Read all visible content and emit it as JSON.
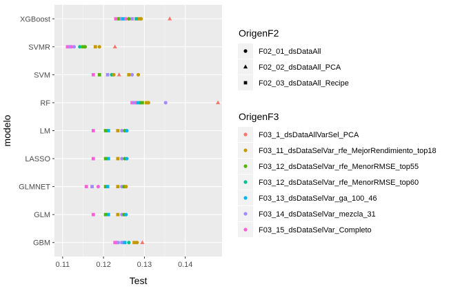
{
  "chart_data": {
    "type": "scatter",
    "xlabel": "Test",
    "ylabel": "modelo",
    "xlim": [
      0.108,
      0.149
    ],
    "x_ticks": [
      0.11,
      0.12,
      0.13,
      0.14
    ],
    "x_tick_labels": [
      "0.11",
      "0.12",
      "0.13",
      "0.14"
    ],
    "categories": [
      "GBM",
      "GLM",
      "GLMNET",
      "LASSO",
      "LM",
      "RF",
      "SVM",
      "SVMR",
      "XGBoost"
    ],
    "grid": true,
    "legend_placement": "right",
    "legend_shape": {
      "title": "OrigenF2",
      "entries": [
        {
          "label": "F02_01_dsDataAll",
          "shape": "circle"
        },
        {
          "label": "F02_02_dsDataAll_PCA",
          "shape": "triangle"
        },
        {
          "label": "F02_03_dsDataAll_Recipe",
          "shape": "square"
        }
      ]
    },
    "legend_color": {
      "title": "OrigenF3",
      "entries": [
        {
          "label": "F03_1_dsDataAllVarSel_PCA",
          "color": "#F8766D"
        },
        {
          "label": "F03_11_dsDataSelVar_rfe_MejorRendimiento_top18",
          "color": "#C49A00"
        },
        {
          "label": "F03_12_dsDataSelVar_rfe_MenorRMSE_top55",
          "color": "#53B400"
        },
        {
          "label": "F03_12_dsDataSelVar_rfe_MenorRMSE_top60",
          "color": "#00C094"
        },
        {
          "label": "F03_13_dsDataSelVar_ga_100_46",
          "color": "#00B6EB"
        },
        {
          "label": "F03_14_dsDataSelVar_mezcla_31",
          "color": "#A58AFF"
        },
        {
          "label": "F03_15_dsDataSelVar_Completo",
          "color": "#FB61D7"
        }
      ]
    },
    "points": [
      {
        "model": "GBM",
        "x": 0.1228,
        "shape": "square",
        "color": 6
      },
      {
        "model": "GBM",
        "x": 0.1232,
        "shape": "circle",
        "color": 6
      },
      {
        "model": "GBM",
        "x": 0.1236,
        "shape": "circle",
        "color": 5
      },
      {
        "model": "GBM",
        "x": 0.1245,
        "shape": "square",
        "color": 5
      },
      {
        "model": "GBM",
        "x": 0.1252,
        "shape": "square",
        "color": 4
      },
      {
        "model": "GBM",
        "x": 0.1262,
        "shape": "circle",
        "color": 3
      },
      {
        "model": "GBM",
        "x": 0.1275,
        "shape": "square",
        "color": 1
      },
      {
        "model": "GBM",
        "x": 0.1282,
        "shape": "circle",
        "color": 1
      },
      {
        "model": "GBM",
        "x": 0.1295,
        "shape": "triangle",
        "color": 0
      },
      {
        "model": "GLM",
        "x": 0.1175,
        "shape": "square",
        "color": 6
      },
      {
        "model": "GLM",
        "x": 0.1205,
        "shape": "square",
        "color": 2
      },
      {
        "model": "GLM",
        "x": 0.1212,
        "shape": "square",
        "color": 4
      },
      {
        "model": "GLM",
        "x": 0.1235,
        "shape": "square",
        "color": 1
      },
      {
        "model": "GLM",
        "x": 0.1245,
        "shape": "circle",
        "color": 5
      },
      {
        "model": "GLM",
        "x": 0.125,
        "shape": "circle",
        "color": 2
      },
      {
        "model": "GLM",
        "x": 0.1255,
        "shape": "circle",
        "color": 4
      },
      {
        "model": "GLMNET",
        "x": 0.1158,
        "shape": "square",
        "color": 6
      },
      {
        "model": "GLMNET",
        "x": 0.1172,
        "shape": "square",
        "color": 5
      },
      {
        "model": "GLMNET",
        "x": 0.1187,
        "shape": "circle",
        "color": 6
      },
      {
        "model": "GLMNET",
        "x": 0.1205,
        "shape": "square",
        "color": 2
      },
      {
        "model": "GLMNET",
        "x": 0.121,
        "shape": "square",
        "color": 4
      },
      {
        "model": "GLMNET",
        "x": 0.1235,
        "shape": "square",
        "color": 1
      },
      {
        "model": "GLMNET",
        "x": 0.1245,
        "shape": "circle",
        "color": 5
      },
      {
        "model": "GLMNET",
        "x": 0.125,
        "shape": "circle",
        "color": 2
      },
      {
        "model": "GLMNET",
        "x": 0.1255,
        "shape": "circle",
        "color": 1
      },
      {
        "model": "LASSO",
        "x": 0.1175,
        "shape": "square",
        "color": 6
      },
      {
        "model": "LASSO",
        "x": 0.1205,
        "shape": "square",
        "color": 2
      },
      {
        "model": "LASSO",
        "x": 0.1212,
        "shape": "square",
        "color": 4
      },
      {
        "model": "LASSO",
        "x": 0.1235,
        "shape": "square",
        "color": 1
      },
      {
        "model": "LASSO",
        "x": 0.1245,
        "shape": "circle",
        "color": 5
      },
      {
        "model": "LASSO",
        "x": 0.1252,
        "shape": "circle",
        "color": 2
      },
      {
        "model": "LASSO",
        "x": 0.1257,
        "shape": "circle",
        "color": 4
      },
      {
        "model": "LM",
        "x": 0.1175,
        "shape": "square",
        "color": 6
      },
      {
        "model": "LM",
        "x": 0.1205,
        "shape": "square",
        "color": 2
      },
      {
        "model": "LM",
        "x": 0.1212,
        "shape": "square",
        "color": 4
      },
      {
        "model": "LM",
        "x": 0.1235,
        "shape": "square",
        "color": 1
      },
      {
        "model": "LM",
        "x": 0.1245,
        "shape": "circle",
        "color": 5
      },
      {
        "model": "LM",
        "x": 0.1252,
        "shape": "circle",
        "color": 2
      },
      {
        "model": "LM",
        "x": 0.1257,
        "shape": "circle",
        "color": 4
      },
      {
        "model": "RF",
        "x": 0.127,
        "shape": "square",
        "color": 6
      },
      {
        "model": "RF",
        "x": 0.1275,
        "shape": "square",
        "color": 5
      },
      {
        "model": "RF",
        "x": 0.128,
        "shape": "circle",
        "color": 6
      },
      {
        "model": "RF",
        "x": 0.1285,
        "shape": "square",
        "color": 4
      },
      {
        "model": "RF",
        "x": 0.129,
        "shape": "circle",
        "color": 3
      },
      {
        "model": "RF",
        "x": 0.1295,
        "shape": "square",
        "color": 2
      },
      {
        "model": "RF",
        "x": 0.1305,
        "shape": "square",
        "color": 1
      },
      {
        "model": "RF",
        "x": 0.131,
        "shape": "circle",
        "color": 1
      },
      {
        "model": "RF",
        "x": 0.1352,
        "shape": "circle",
        "color": 5
      },
      {
        "model": "RF",
        "x": 0.148,
        "shape": "triangle",
        "color": 0
      },
      {
        "model": "SVM",
        "x": 0.1175,
        "shape": "square",
        "color": 6
      },
      {
        "model": "SVM",
        "x": 0.119,
        "shape": "square",
        "color": 2
      },
      {
        "model": "SVM",
        "x": 0.121,
        "shape": "square",
        "color": 5
      },
      {
        "model": "SVM",
        "x": 0.122,
        "shape": "circle",
        "color": 3
      },
      {
        "model": "SVM",
        "x": 0.1225,
        "shape": "circle",
        "color": 1
      },
      {
        "model": "SVM",
        "x": 0.1238,
        "shape": "triangle",
        "color": 0
      },
      {
        "model": "SVM",
        "x": 0.1262,
        "shape": "square",
        "color": 1
      },
      {
        "model": "SVM",
        "x": 0.127,
        "shape": "circle",
        "color": 5
      },
      {
        "model": "SVM",
        "x": 0.1285,
        "shape": "circle",
        "color": 1
      },
      {
        "model": "SVMR",
        "x": 0.1112,
        "shape": "square",
        "color": 6
      },
      {
        "model": "SVMR",
        "x": 0.1118,
        "shape": "square",
        "color": 5
      },
      {
        "model": "SVMR",
        "x": 0.1122,
        "shape": "circle",
        "color": 6
      },
      {
        "model": "SVMR",
        "x": 0.1128,
        "shape": "circle",
        "color": 5
      },
      {
        "model": "SVMR",
        "x": 0.1142,
        "shape": "circle",
        "color": 3
      },
      {
        "model": "SVMR",
        "x": 0.115,
        "shape": "square",
        "color": 2
      },
      {
        "model": "SVMR",
        "x": 0.1155,
        "shape": "circle",
        "color": 2
      },
      {
        "model": "SVMR",
        "x": 0.118,
        "shape": "square",
        "color": 1
      },
      {
        "model": "SVMR",
        "x": 0.119,
        "shape": "circle",
        "color": 1
      },
      {
        "model": "SVMR",
        "x": 0.1228,
        "shape": "triangle",
        "color": 0
      },
      {
        "model": "XGBoost",
        "x": 0.123,
        "shape": "square",
        "color": 6
      },
      {
        "model": "XGBoost",
        "x": 0.1238,
        "shape": "square",
        "color": 2
      },
      {
        "model": "XGBoost",
        "x": 0.1243,
        "shape": "circle",
        "color": 5
      },
      {
        "model": "XGBoost",
        "x": 0.1248,
        "shape": "square",
        "color": 4
      },
      {
        "model": "XGBoost",
        "x": 0.1255,
        "shape": "circle",
        "color": 6
      },
      {
        "model": "XGBoost",
        "x": 0.1262,
        "shape": "circle",
        "color": 2
      },
      {
        "model": "XGBoost",
        "x": 0.127,
        "shape": "square",
        "color": 5
      },
      {
        "model": "XGBoost",
        "x": 0.128,
        "shape": "square",
        "color": 3
      },
      {
        "model": "XGBoost",
        "x": 0.1288,
        "shape": "square",
        "color": 1
      },
      {
        "model": "XGBoost",
        "x": 0.1292,
        "shape": "circle",
        "color": 1
      },
      {
        "model": "XGBoost",
        "x": 0.1362,
        "shape": "triangle",
        "color": 0
      }
    ]
  },
  "colors": {
    "panel_bg": "#EBEBEB",
    "grid_major": "#FFFFFF",
    "grid_minor": "#F5F5F5",
    "key_bg": "#F2F2F2"
  }
}
